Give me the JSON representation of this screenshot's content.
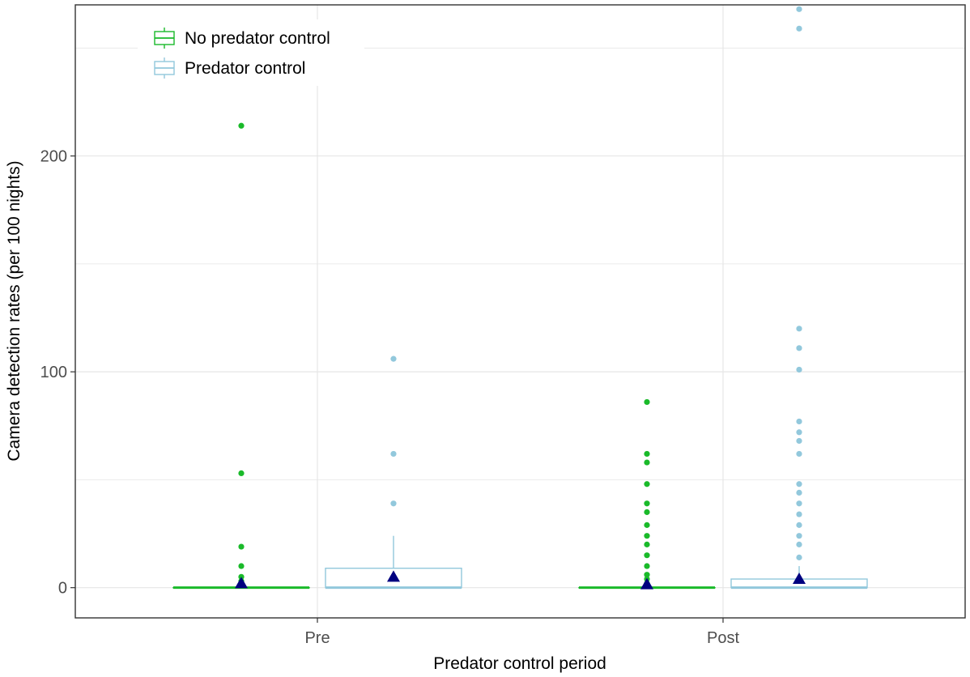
{
  "colors": {
    "no_control": "#1aba2a",
    "control": "#92c8dc",
    "mean_marker": "#000080",
    "grid": "#e6e6e6",
    "panel_border": "#333333"
  },
  "chart_data": {
    "type": "box",
    "xlabel": "Predator control period",
    "ylabel": "Camera detection rates (per 100 nights)",
    "categories": [
      "Pre",
      "Post"
    ],
    "ylim": [
      -14,
      270
    ],
    "y_ticks": [
      0,
      100,
      200
    ],
    "grid": true,
    "legend": {
      "placement": "top-left"
    },
    "series": [
      {
        "name": "No predator control",
        "color_key": "no_control",
        "boxes": [
          {
            "category": "Pre",
            "min": 0,
            "q1": 0,
            "median": 0,
            "q3": 0,
            "max": 0,
            "mean": 2,
            "outliers": [
              214,
              53,
              19,
              10,
              5,
              3,
              2,
              1
            ]
          },
          {
            "category": "Post",
            "min": 0,
            "q1": 0,
            "median": 0,
            "q3": 0,
            "max": 0,
            "mean": 1.5,
            "outliers": [
              86,
              62,
              58,
              48,
              39,
              35,
              29,
              24,
              20,
              15,
              10,
              6,
              4,
              2
            ]
          }
        ]
      },
      {
        "name": "Predator control",
        "color_key": "control",
        "boxes": [
          {
            "category": "Pre",
            "min": 0,
            "q1": 0,
            "median": 0,
            "q3": 9,
            "max": 24,
            "mean": 5,
            "outliers": [
              106,
              62,
              39
            ]
          },
          {
            "category": "Post",
            "min": 0,
            "q1": 0,
            "median": 0,
            "q3": 4,
            "max": 10,
            "mean": 4,
            "outliers": [
              268,
              259,
              120,
              111,
              101,
              77,
              72,
              68,
              62,
              48,
              44,
              39,
              34,
              29,
              24,
              20,
              14
            ]
          }
        ]
      }
    ]
  }
}
